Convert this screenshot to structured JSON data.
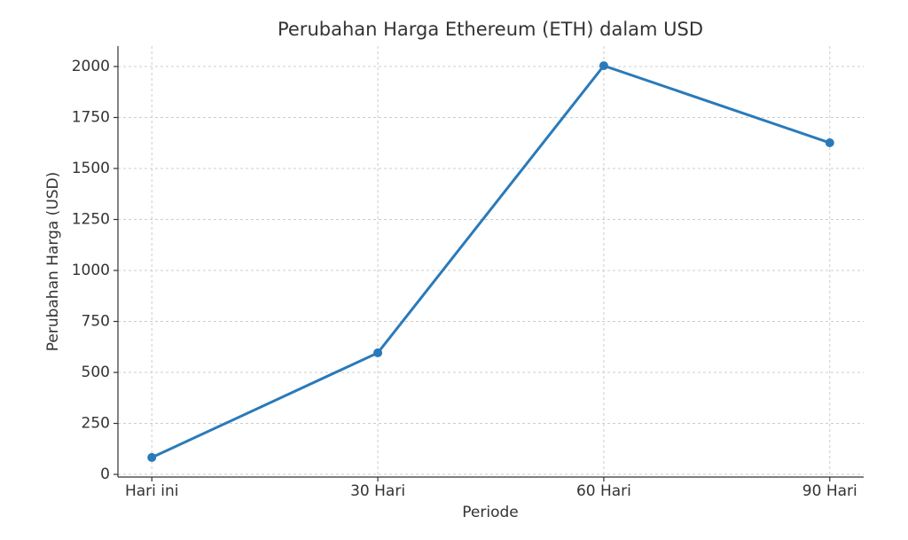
{
  "chart_data": {
    "type": "line",
    "title": "Perubahan Harga Ethereum (ETH) dalam USD",
    "x_label": "Periode",
    "y_label": "Perubahan Harga (USD)",
    "categories": [
      "Hari ini",
      "30 Hari",
      "60 Hari",
      "90 Hari"
    ],
    "values": [
      83,
      596,
      2004,
      1626
    ],
    "color": "#2a7ab9",
    "ylim": [
      -13,
      2100
    ],
    "yticks": [
      0,
      250,
      500,
      750,
      1000,
      1250,
      1500,
      1750,
      2000
    ],
    "grid": true
  }
}
